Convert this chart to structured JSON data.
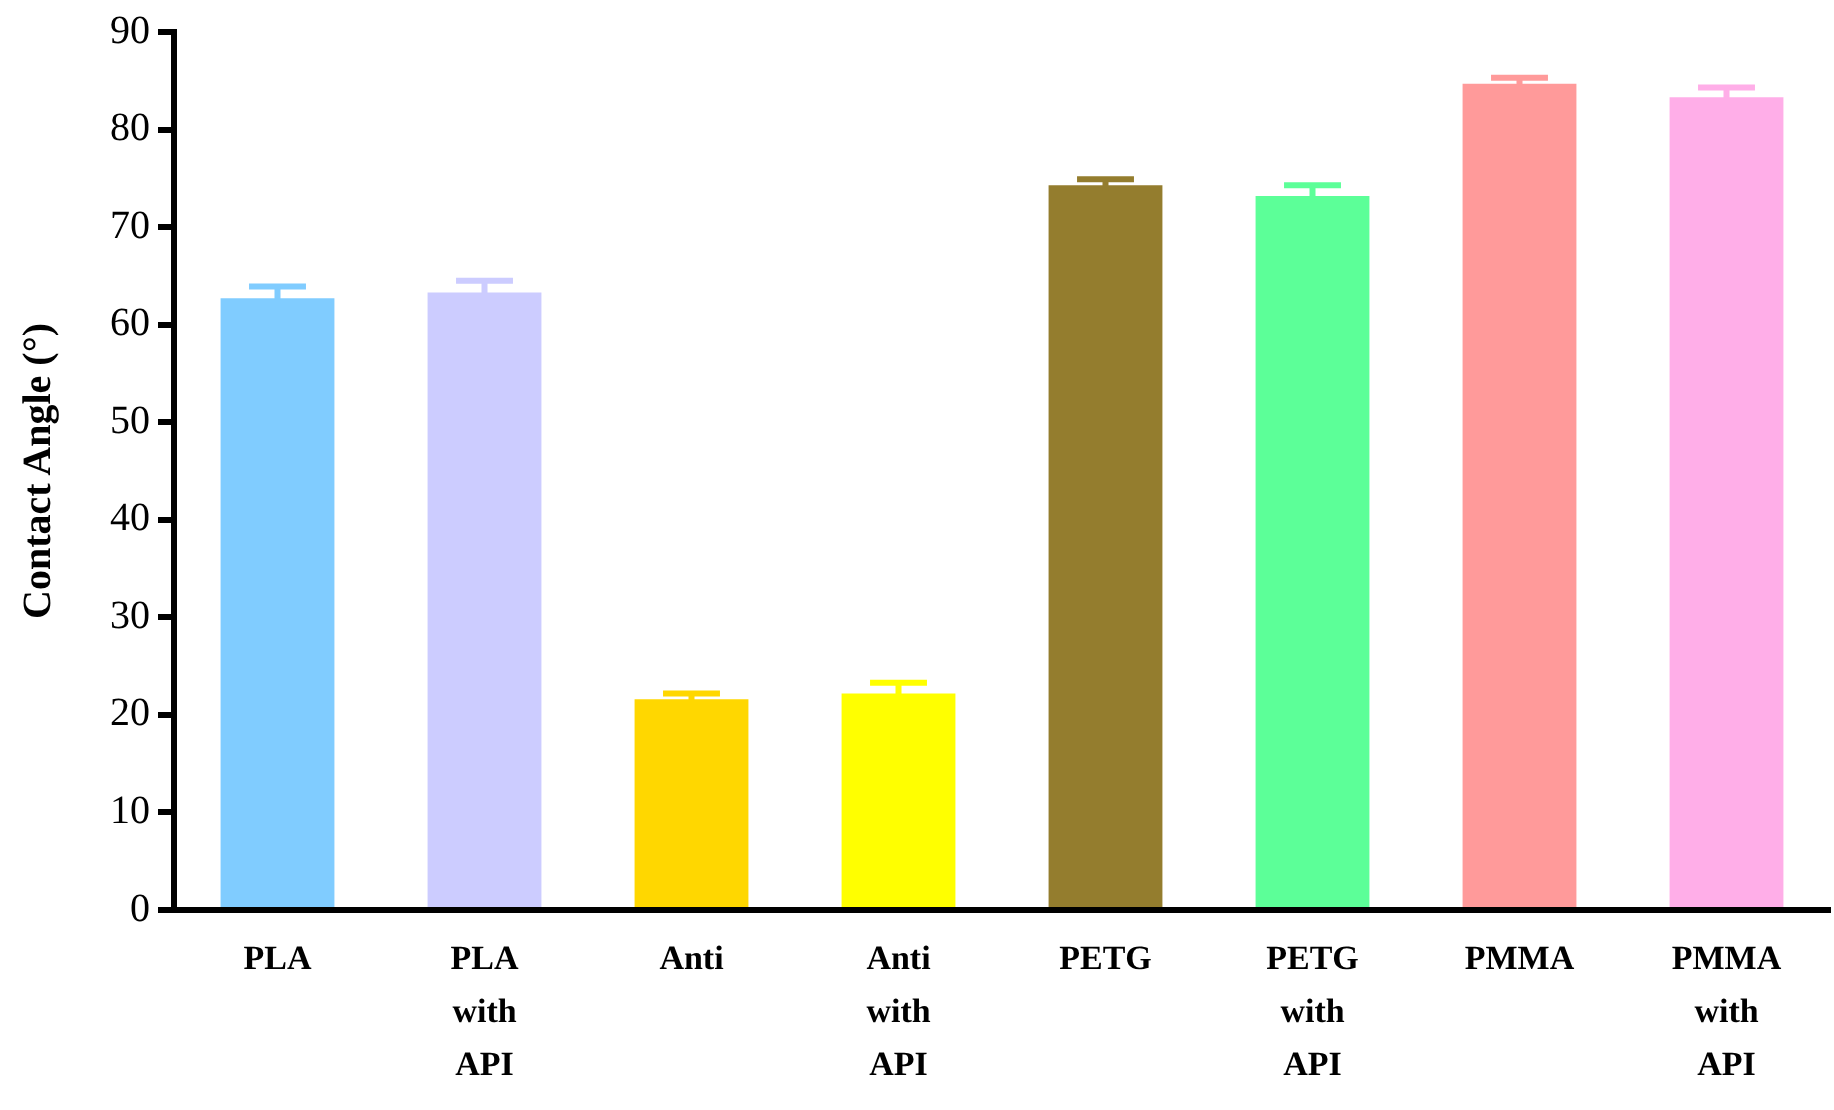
{
  "chart_data": {
    "type": "bar",
    "ylabel": "Contact Angle (°)",
    "categories": [
      "PLA",
      "PLA with API",
      "Anti",
      "Anti with API",
      "PETG",
      "PETG with API",
      "PMMA",
      "PMMA with API"
    ],
    "values": [
      62.7,
      63.3,
      21.6,
      22.2,
      74.3,
      73.2,
      84.7,
      83.3
    ],
    "errors": [
      1.2,
      1.2,
      0.6,
      1.1,
      0.6,
      1.1,
      0.6,
      1.0
    ],
    "colors": [
      "#80ccff",
      "#ccccff",
      "#ffd700",
      "#ffff00",
      "#947d2e",
      "#5cff98",
      "#ff9a9a",
      "#ffaee8"
    ],
    "ylim": [
      0,
      90
    ],
    "yticks": [
      0,
      10,
      20,
      30,
      40,
      50,
      60,
      70,
      80,
      90
    ],
    "grid": false,
    "legend": false
  }
}
